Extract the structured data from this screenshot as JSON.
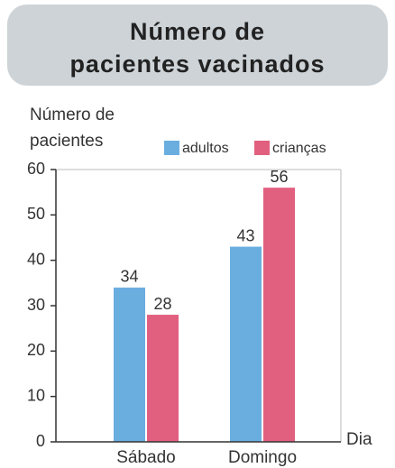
{
  "chart_data": {
    "type": "bar",
    "title": [
      "Número de",
      "pacientes vacinados"
    ],
    "ylabel": [
      "Número de",
      "pacientes"
    ],
    "xlabel": "Dia",
    "categories": [
      "Sábado",
      "Domingo"
    ],
    "series": [
      {
        "name": "adultos",
        "color": "#6aaee0",
        "values": [
          34,
          43
        ]
      },
      {
        "name": "crianças",
        "color": "#e2607f",
        "values": [
          28,
          56
        ]
      }
    ],
    "ylim": [
      0,
      60
    ],
    "yticks": [
      0,
      10,
      20,
      30,
      40,
      50,
      60
    ],
    "grid": false
  }
}
